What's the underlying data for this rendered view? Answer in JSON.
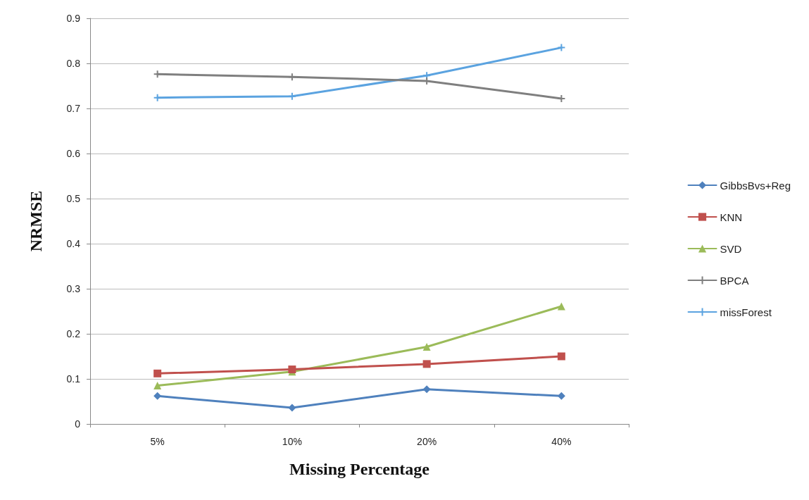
{
  "chart_data": {
    "type": "line",
    "xlabel": "Missing Percentage",
    "ylabel": "NRMSE",
    "categories": [
      "5%",
      "10%",
      "20%",
      "40%"
    ],
    "series": [
      {
        "name": "GibbsBvs+Reg",
        "color": "#4f81bd",
        "marker": "diamond",
        "values": [
          0.062,
          0.036,
          0.077,
          0.062
        ]
      },
      {
        "name": "KNN",
        "color": "#c0504d",
        "marker": "square",
        "values": [
          0.112,
          0.121,
          0.133,
          0.15
        ]
      },
      {
        "name": "SVD",
        "color": "#9bbb59",
        "marker": "triangle",
        "values": [
          0.085,
          0.116,
          0.171,
          0.261
        ]
      },
      {
        "name": "BPCA",
        "color": "#7f7f7f",
        "marker": "cross",
        "values": [
          0.776,
          0.77,
          0.761,
          0.722
        ]
      },
      {
        "name": "missForest",
        "color": "#5ba3e0",
        "marker": "cross",
        "values": [
          0.724,
          0.727,
          0.773,
          0.835
        ]
      }
    ],
    "ylim": [
      0,
      0.9
    ],
    "yticks": [
      0,
      0.1,
      0.2,
      0.3,
      0.4,
      0.5,
      0.6,
      0.7,
      0.8,
      0.9
    ],
    "grid": "y",
    "legend": "right",
    "line_style": "solid"
  }
}
